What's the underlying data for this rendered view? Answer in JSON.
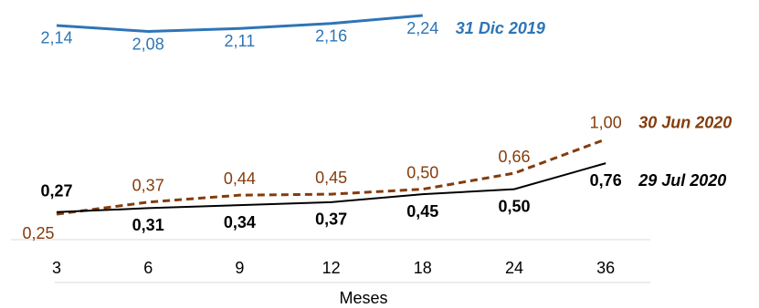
{
  "chart_data": {
    "type": "line",
    "x_label": "Meses",
    "categories": [
      "3",
      "6",
      "9",
      "12",
      "18",
      "24",
      "36"
    ],
    "series": [
      {
        "name": "31 Dic 2019",
        "color": "#2e75b6",
        "values": [
          2.14,
          2.08,
          2.11,
          2.16,
          2.24,
          null,
          null
        ],
        "value_labels": [
          "2,14",
          "2,08",
          "2,11",
          "2,16",
          "2,24",
          null,
          null
        ]
      },
      {
        "name": "30 Jun 2020",
        "color": "#843c0c",
        "dashed": true,
        "values": [
          0.25,
          0.37,
          0.44,
          0.45,
          0.5,
          0.66,
          1.0
        ],
        "value_labels": [
          "0,25",
          "0,37",
          "0,44",
          "0,45",
          "0,50",
          "0,66",
          "1,00"
        ]
      },
      {
        "name": "29 Jul 2020",
        "color": "#000000",
        "values": [
          0.27,
          0.31,
          0.34,
          0.37,
          0.45,
          0.5,
          0.76
        ],
        "value_labels": [
          "0,27",
          "0,31",
          "0,34",
          "0,37",
          "0,45",
          "0,50",
          "0,76"
        ]
      }
    ]
  }
}
